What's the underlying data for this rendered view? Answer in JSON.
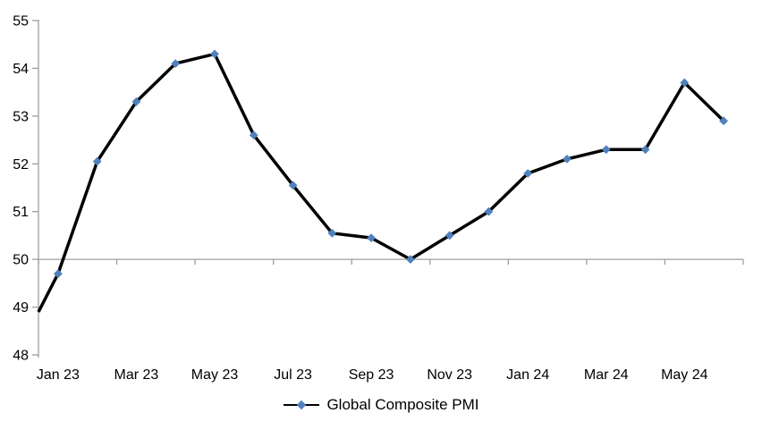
{
  "chart_data": {
    "type": "line",
    "title": "",
    "categories": [
      "Jan 23",
      "Feb 23",
      "Mar 23",
      "Apr 23",
      "May 23",
      "Jun 23",
      "Jul 23",
      "Aug 23",
      "Sep 23",
      "Oct 23",
      "Nov 23",
      "Dec 23",
      "Jan 24",
      "Feb 24",
      "Mar 24",
      "Apr 24",
      "May 24",
      "Jun 24"
    ],
    "series": [
      {
        "name": "Global Composite PMI",
        "values": [
          49.7,
          52.05,
          53.3,
          54.1,
          54.3,
          52.6,
          51.55,
          50.55,
          50.45,
          50.0,
          50.5,
          51.0,
          51.8,
          52.1,
          52.3,
          52.3,
          53.7,
          52.9
        ]
      }
    ],
    "clipped_entry_value": 48.9,
    "x_axis": {
      "tick_labels": [
        "Jan 23",
        "Mar 23",
        "May 23",
        "Jul 23",
        "Sep 23",
        "Nov 23",
        "Jan 24",
        "Mar 24",
        "May 24"
      ],
      "ticks_every_n_categories": 2,
      "axis_crosses_at": 50
    },
    "y_axis": {
      "min": 48,
      "max": 55,
      "tick_interval": 1,
      "tick_labels": [
        "48",
        "49",
        "50",
        "51",
        "52",
        "53",
        "54",
        "55"
      ]
    },
    "legend": {
      "position": "bottom-center",
      "marker_shape": "diamond"
    },
    "grid": false,
    "colors": {
      "line": "#000000",
      "marker": "#4F81BD",
      "axis": "#9E9E9E",
      "text": "#000000",
      "background": "#FFFFFF"
    }
  }
}
